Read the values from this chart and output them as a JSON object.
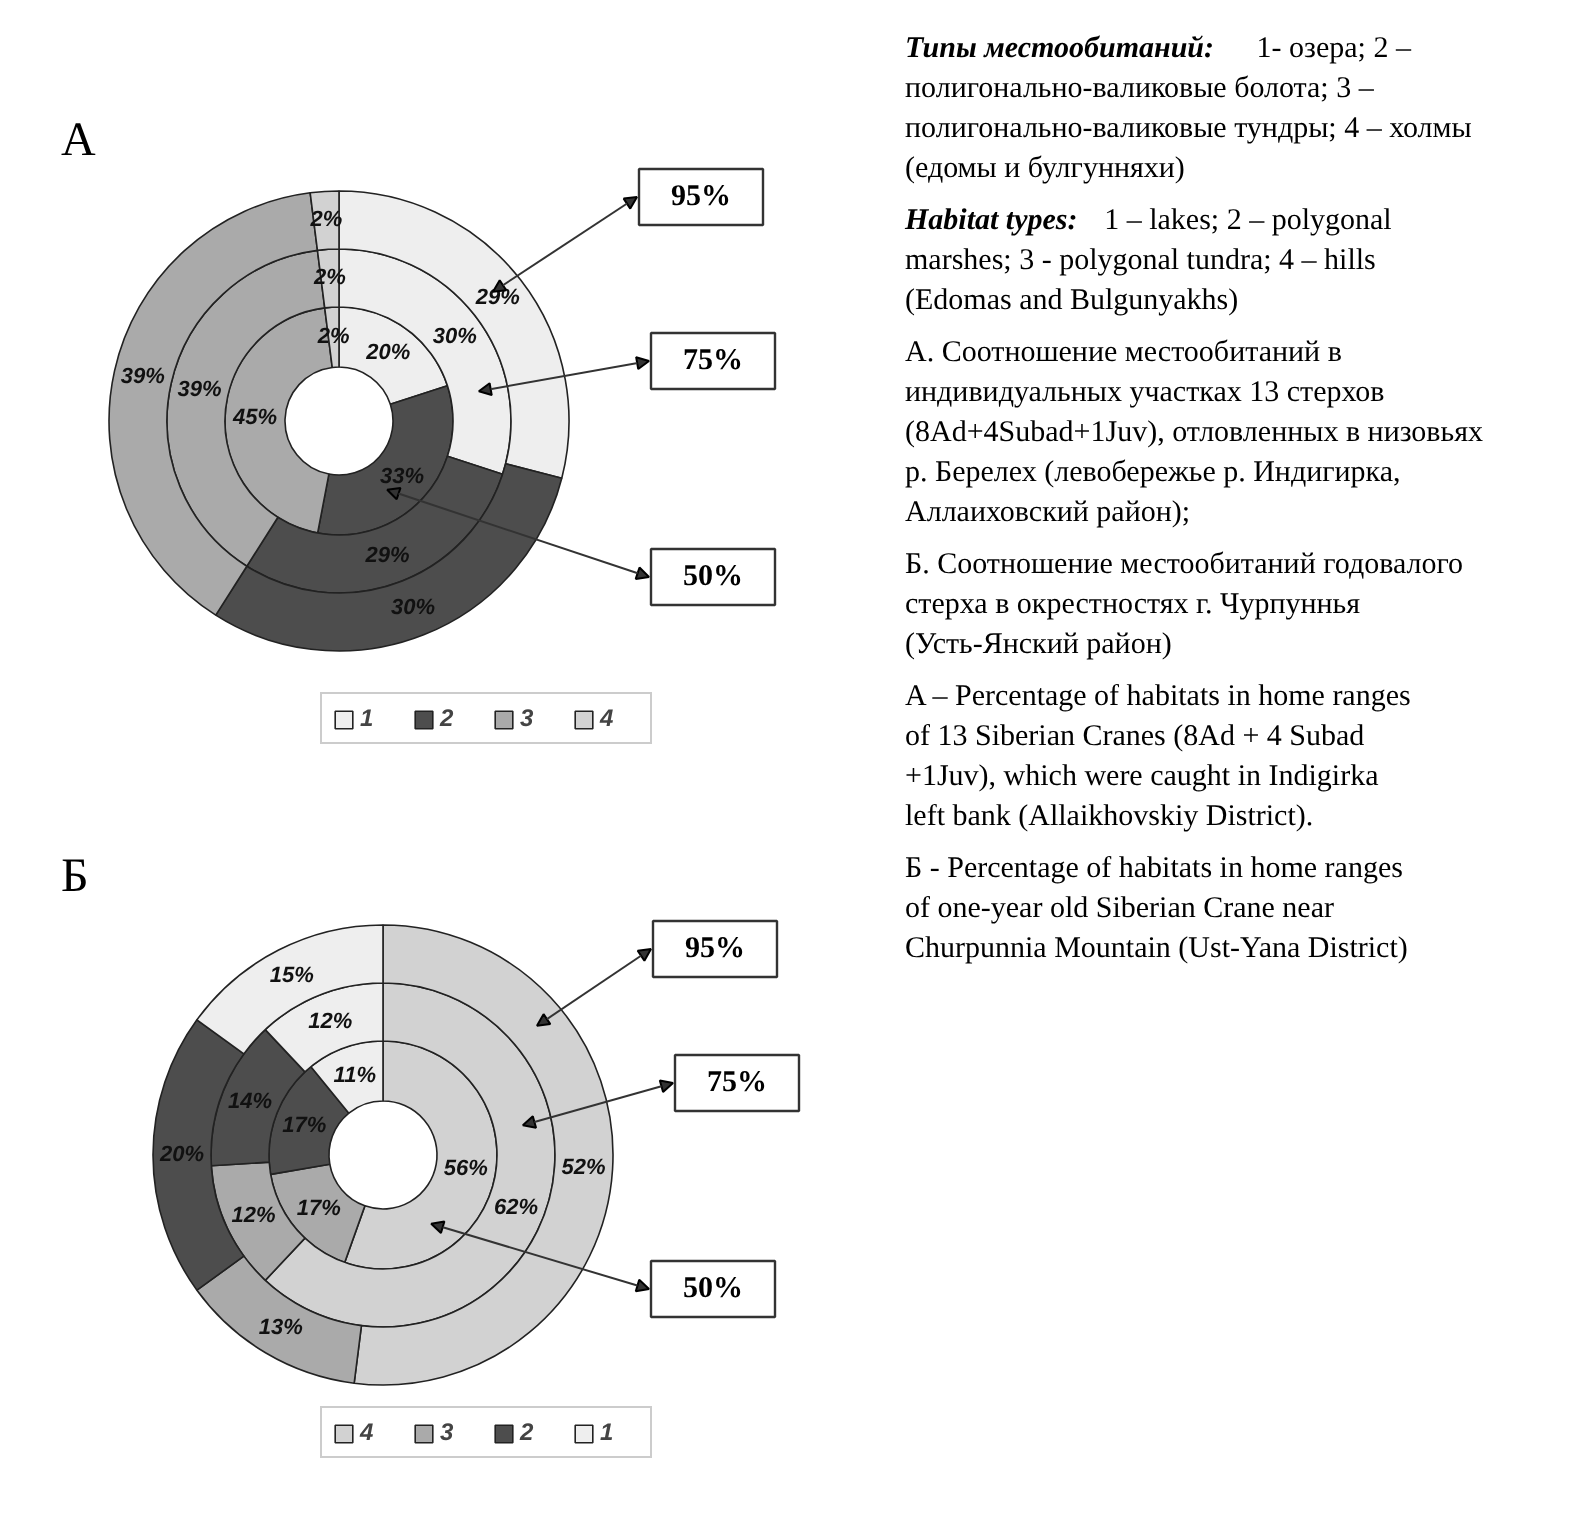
{
  "chart_data": [
    {
      "type": "donut",
      "title": "А",
      "categories": [
        "1",
        "2",
        "3",
        "4"
      ],
      "colors": [
        "#eeeeee",
        "#4d4d4d",
        "#aaaaaa",
        "#d2d2d2"
      ],
      "legend": "bottom",
      "data_labels": true,
      "series": [
        {
          "name": "50%",
          "values": [
            20,
            33,
            45,
            2
          ],
          "value_labels": [
            "20%",
            "33%",
            "45%",
            "2%"
          ]
        },
        {
          "name": "75%",
          "values": [
            30,
            29,
            39,
            2
          ],
          "value_labels": [
            "30%",
            "29%",
            "39%",
            "2%"
          ]
        },
        {
          "name": "95%",
          "values": [
            29,
            30,
            39,
            2
          ],
          "value_labels": [
            "29%",
            "30%",
            "39%",
            "2%"
          ]
        }
      ],
      "annotations": [
        "Типы местообитаний: 1- озера; 2 – полигонально-валиковые болота; 3 – полигонально-валиковые тундры; 4 – холмы (едомы и булгунняхи)",
        "Habitat types: 1 – lakes; 2 – polygonal marshes; 3 - polygonal tundra; 4 – hills (Edomas and Bulgunyakhs)",
        "А. Соотношение местообитаний в индивидуальных участках 13 стерхов (8Ad+4Subad+1Juv), отловленных в низовьях р. Берелех (левобережье р. Индигирка, Аллаиховский район);",
        "Б. Соотношение местообитаний годовалого стерха в окрестностях г. Чурпуннья (Усть-Янский район)",
        "A – Percentage of habitats in home ranges of 13 Siberian Cranes (8Ad + 4 Subad +1Juv), which were caught in Indigirka left bank (Allaikhovskiy District).",
        "Б - Percentage of habitats in home ranges of one-year old Siberian Crane near Churpunnia Mountain (Ust-Yana District)"
      ]
    },
    {
      "type": "donut",
      "title": "Б",
      "categories": [
        "4",
        "3",
        "2",
        "1"
      ],
      "colors": [
        "#d2d2d2",
        "#aaaaaa",
        "#4d4d4d",
        "#eeeeee"
      ],
      "legend": "bottom",
      "data_labels": true,
      "series": [
        {
          "name": "50%",
          "values": [
            56,
            17,
            17,
            11
          ],
          "value_labels": [
            "56%",
            "17%",
            "17%",
            "11%"
          ]
        },
        {
          "name": "75%",
          "values": [
            62,
            12,
            14,
            12
          ],
          "value_labels": [
            "62%",
            "12%",
            "14%",
            "12%"
          ]
        },
        {
          "name": "95%",
          "values": [
            52,
            13,
            20,
            15
          ],
          "value_labels": [
            "52%",
            "13%",
            "20%",
            "15%"
          ]
        }
      ]
    }
  ]
}
